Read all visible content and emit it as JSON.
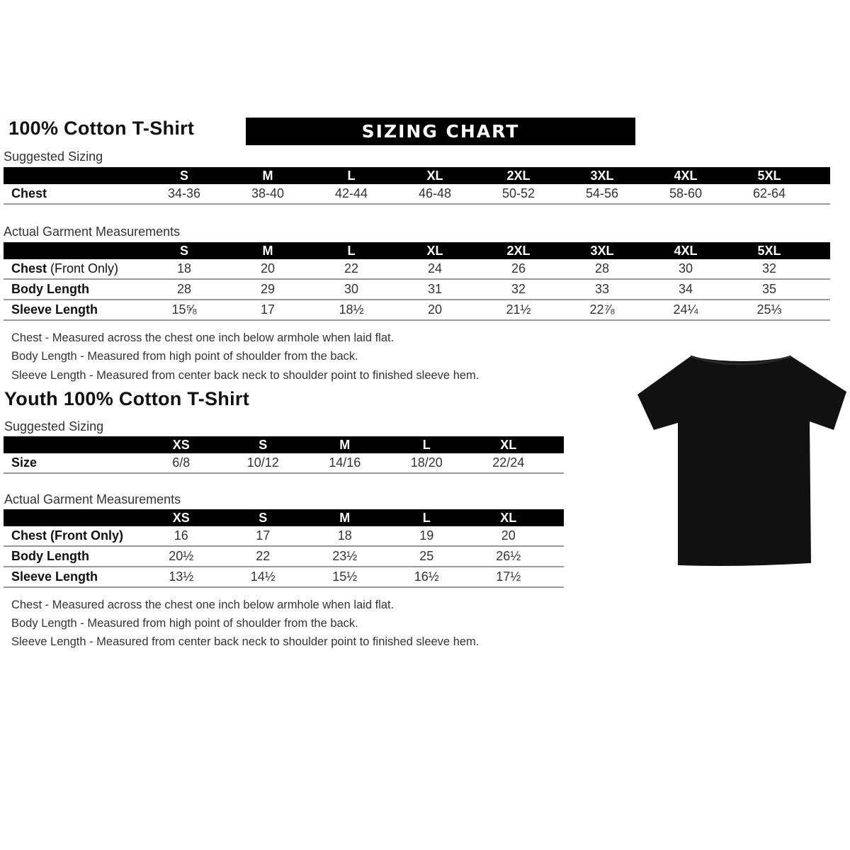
{
  "adult": {
    "title": "100% Cotton T-Shirt",
    "banner": "SIZING CHART",
    "suggested_label": "Suggested Sizing",
    "sizes": [
      "S",
      "M",
      "L",
      "XL",
      "2XL",
      "3XL",
      "4XL",
      "5XL"
    ],
    "suggested_rows": [
      {
        "label": "Chest",
        "values": [
          "34-36",
          "38-40",
          "42-44",
          "46-48",
          "50-52",
          "54-56",
          "58-60",
          "62-64"
        ]
      }
    ],
    "actual_label": "Actual Garment Measurements",
    "actual_rows": [
      {
        "label": "Chest",
        "label_suffix": " (Front Only)",
        "values": [
          "18",
          "20",
          "22",
          "24",
          "26",
          "28",
          "30",
          "32"
        ]
      },
      {
        "label": "Body Length",
        "label_suffix": "",
        "values": [
          "28",
          "29",
          "30",
          "31",
          "32",
          "33",
          "34",
          "35"
        ]
      },
      {
        "label": "Sleeve Length",
        "label_suffix": "",
        "values": [
          "15⅝",
          "17",
          "18½",
          "20",
          "21½",
          "22⅞",
          "24¼",
          "25⅓"
        ]
      }
    ],
    "notes": [
      "Chest - Measured across the chest one inch below armhole when laid flat.",
      "Body Length - Measured from high point of shoulder from the back.",
      "Sleeve Length - Measured from center back neck to shoulder point to finished sleeve hem."
    ]
  },
  "youth": {
    "title": "Youth 100% Cotton T-Shirt",
    "suggested_label": "Suggested Sizing",
    "sizes": [
      "XS",
      "S",
      "M",
      "L",
      "XL"
    ],
    "suggested_rows": [
      {
        "label": "Size",
        "values": [
          "6/8",
          "10/12",
          "14/16",
          "18/20",
          "22/24"
        ]
      }
    ],
    "actual_label": "Actual Garment Measurements",
    "actual_rows": [
      {
        "label": "Chest (Front Only)",
        "values": [
          "16",
          "17",
          "18",
          "19",
          "20"
        ]
      },
      {
        "label": "Body Length",
        "values": [
          "20½",
          "22",
          "23½",
          "25",
          "26½"
        ]
      },
      {
        "label": "Sleeve Length",
        "values": [
          "13½",
          "14½",
          "15½",
          "16½",
          "17½"
        ]
      }
    ],
    "notes": [
      "Chest - Measured across the chest one inch below armhole when laid flat.",
      "Body Length - Measured from high point of shoulder from the back.",
      "Sleeve Length - Measured from center back neck to shoulder point to finished sleeve hem."
    ]
  },
  "image": {
    "icon": "black-tshirt",
    "color": "#111111"
  }
}
